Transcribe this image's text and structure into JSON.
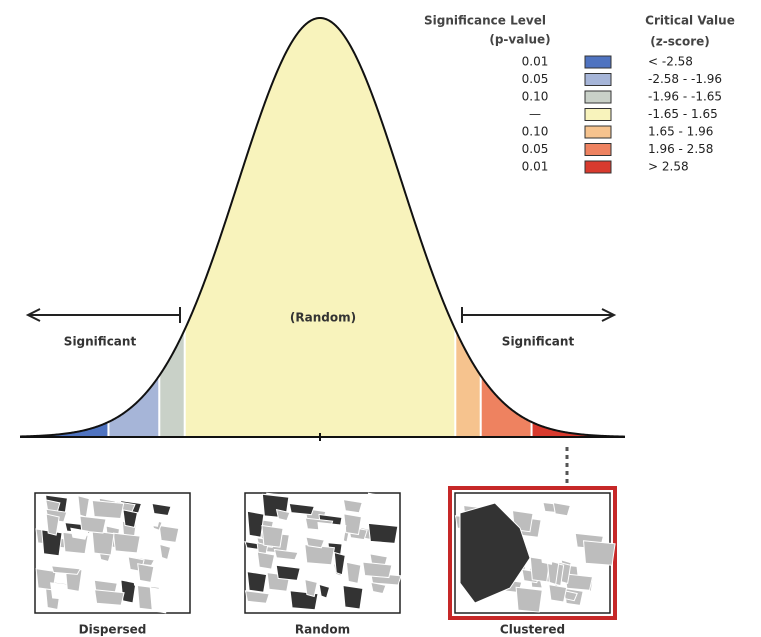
{
  "legend": {
    "p_header": "Significance Level",
    "p_sub": "(p-value)",
    "z_header": "Critical Value",
    "z_sub": "(z-score)",
    "rows": [
      {
        "p": "0.01",
        "z": "< -2.58",
        "color": "#4f73c0"
      },
      {
        "p": "0.05",
        "z": "-2.58 - -1.96",
        "color": "#a6b5d8"
      },
      {
        "p": "0.10",
        "z": "-1.96 - -1.65",
        "color": "#c9d1c8"
      },
      {
        "p": "—",
        "z": "-1.65 - 1.65",
        "color": "#f8f3bc"
      },
      {
        "p": "0.10",
        "z": "1.65 - 1.96",
        "color": "#f6c38e"
      },
      {
        "p": "0.05",
        "z": "1.96 - 2.58",
        "color": "#ee8260"
      },
      {
        "p": "0.01",
        "z": "> 2.58",
        "color": "#d83a2e"
      }
    ]
  },
  "curve": {
    "left_label": "Significant",
    "center_label": "(Random)",
    "right_label": "Significant"
  },
  "maps": [
    {
      "label": "Dispersed"
    },
    {
      "label": "Random"
    },
    {
      "label": "Clustered"
    }
  ]
}
